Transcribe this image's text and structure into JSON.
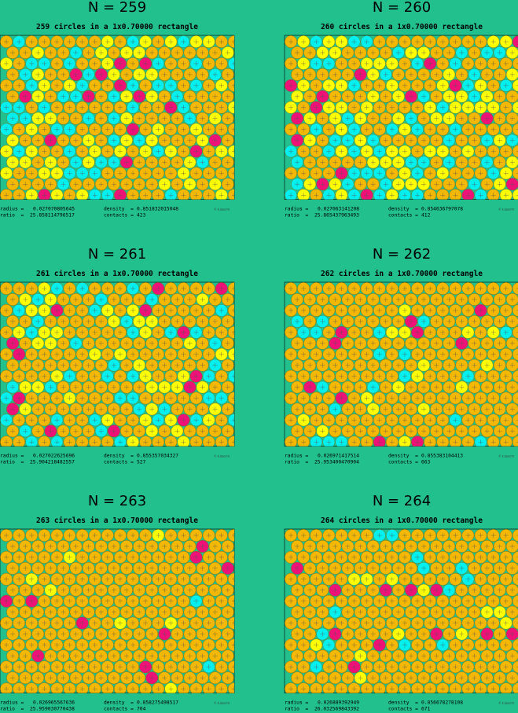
{
  "labels": {
    "radius": "radius =",
    "density": "density  =",
    "ratio": "ratio  =",
    "contacts": "contacts ="
  },
  "credit": "© E.Specht",
  "panels": [
    {
      "title": "N = 259",
      "subtitle": "259 circles in a 1x0.70000 rectangle",
      "radius": 0.027070805645,
      "density": 0.851832015048,
      "ratio": 25.858114796517,
      "contacts": 423
    },
    {
      "title": "N = 260",
      "subtitle": "260 circles in a 1x0.70000 rectangle",
      "radius": 0.027063141208,
      "density": 0.854636797078,
      "ratio": 25.865437963493,
      "contacts": 412
    },
    {
      "title": "N = 261",
      "subtitle": "261 circles in a 1x0.70000 rectangle",
      "radius": 0.027022625696,
      "density": 0.855357034327,
      "ratio": 25.904218482557,
      "contacts": 527
    },
    {
      "title": "N = 262",
      "subtitle": "262 circles in a 1x0.70000 rectangle",
      "radius": 0.026971417514,
      "density": 0.855383104413,
      "ratio": 25.953400470904,
      "contacts": 663
    },
    {
      "title": "N = 263",
      "subtitle": "263 circles in a 1x0.70000 rectangle",
      "radius": 0.026965567636,
      "density": 0.858275498517,
      "ratio": 25.959030770438,
      "contacts": 704
    },
    {
      "title": "N = 264",
      "subtitle": "264 circles in a 1x0.70000 rectangle",
      "radius": 0.026889392949,
      "density": 0.856678278108,
      "ratio": 26.032569843392,
      "contacts": 671
    }
  ]
}
